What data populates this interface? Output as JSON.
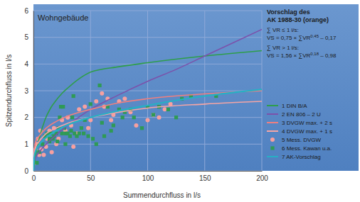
{
  "chart_data": {
    "type": "line",
    "title": "Wohngebäude",
    "x_label": "Summendurchfluss in l/s",
    "y_label": "Spitzendurchfluss in l/s",
    "xlim": [
      0,
      200
    ],
    "ylim": [
      0,
      6
    ],
    "xticks": [
      0,
      50,
      100,
      150,
      200
    ],
    "yticks": [
      0,
      1,
      2,
      3,
      4,
      5,
      6
    ],
    "grid": true,
    "legend": "right",
    "annotations": [
      "Vorschlag des",
      "AK 1988-30 (orange)",
      "∑ VR ≤ 1 l/s:",
      [
        "VS = 0,75 × ∑VR",
        "0,45",
        " – 0,17"
      ],
      "∑ VR > 1 l/s:",
      [
        "VS = 1,56 × ∑VR",
        "0,18",
        " – 0,98"
      ]
    ],
    "series": [
      {
        "name": "1 DIN B/A",
        "type": "line",
        "color": "#2e9e4a",
        "line_style": "solid",
        "x": [
          0,
          2,
          5,
          10,
          15,
          20,
          25,
          30,
          40,
          50,
          75,
          100,
          150,
          200
        ],
        "values": [
          0,
          0.6,
          1.2,
          1.9,
          2.35,
          2.65,
          2.9,
          3.1,
          3.45,
          3.7,
          3.9,
          4.05,
          4.3,
          4.5
        ]
      },
      {
        "name": "2 EN 806 – 2 U",
        "type": "line",
        "color": "#7b52ab",
        "line_style": "solid",
        "x": [
          0,
          2,
          5,
          10,
          20,
          30,
          50,
          75,
          100,
          125,
          150,
          175,
          200
        ],
        "values": [
          0.3,
          0.5,
          0.7,
          0.95,
          1.35,
          1.7,
          2.3,
          2.85,
          3.35,
          3.8,
          4.3,
          4.8,
          5.3
        ]
      },
      {
        "name": "3 DVGW max. + 2 s",
        "type": "line",
        "color": "#f07f7f",
        "line_style": "solid",
        "x": [
          0,
          2,
          5,
          10,
          20,
          30,
          50,
          75,
          100,
          150,
          200
        ],
        "values": [
          0.6,
          1.1,
          1.3,
          1.55,
          1.85,
          2.05,
          2.3,
          2.55,
          2.7,
          2.88,
          3.0
        ]
      },
      {
        "name": "4 DVGW max. + 1 s",
        "type": "line",
        "color": "#f5a5a5",
        "line_style": "solid",
        "x": [
          0,
          2,
          5,
          10,
          20,
          30,
          50,
          75,
          100,
          150,
          200
        ],
        "values": [
          0.5,
          0.9,
          1.1,
          1.35,
          1.6,
          1.78,
          2.0,
          2.2,
          2.35,
          2.5,
          2.6
        ]
      },
      {
        "name": "5 Mess. DVGW",
        "type": "scatter",
        "color": "#f7a0a0",
        "marker": "circle",
        "x": [
          1,
          2,
          3,
          4,
          5,
          6,
          7,
          9,
          11,
          12,
          14,
          16,
          18,
          20,
          22,
          25,
          28,
          30,
          33,
          35,
          38,
          40,
          45,
          48,
          50,
          55,
          60,
          62,
          65,
          68,
          70,
          75,
          80,
          85,
          90,
          100,
          105,
          110,
          115,
          120
        ],
        "values": [
          0.3,
          0.8,
          1.0,
          1.2,
          0.6,
          1.5,
          0.8,
          0.6,
          0.9,
          1.2,
          1.5,
          0.7,
          1.6,
          1.0,
          1.2,
          1.9,
          1.5,
          2.0,
          1.7,
          0.9,
          1.4,
          2.3,
          2.4,
          1.6,
          1.9,
          2.6,
          2.9,
          2.4,
          2.7,
          1.9,
          2.1,
          2.6,
          2.7,
          2.2,
          1.7,
          1.9,
          2.1,
          2.0,
          2.3,
          2.5
        ]
      },
      {
        "name": "6 Mess. Kawan u.a.",
        "type": "scatter",
        "color": "#2f9a55",
        "marker": "square",
        "x": [
          3,
          5,
          8,
          10,
          12,
          14,
          14,
          15,
          17,
          18,
          20,
          21,
          22,
          23,
          24,
          25,
          26,
          27,
          28,
          28,
          30,
          32,
          33,
          34,
          35,
          36,
          38,
          40,
          42,
          44,
          45,
          48,
          50,
          52,
          55,
          58,
          60,
          62,
          65,
          68,
          70,
          75,
          78,
          80,
          85,
          88,
          95,
          100,
          105,
          110,
          118,
          125,
          130,
          138,
          160
        ],
        "values": [
          0.3,
          0.7,
          1.0,
          1.3,
          1.4,
          1.1,
          1.2,
          1.4,
          1.2,
          1.3,
          1.4,
          1.1,
          1.6,
          2.0,
          2.4,
          1.4,
          2.4,
          1.6,
          1.0,
          1.4,
          1.4,
          1.3,
          1.5,
          2.0,
          2.8,
          1.4,
          1.3,
          1.4,
          1.6,
          1.4,
          1.9,
          1.3,
          2.5,
          1.2,
          1.0,
          3.2,
          1.8,
          1.3,
          2.4,
          1.5,
          1.7,
          2.3,
          2.0,
          2.2,
          2.3,
          2.0,
          1.6,
          2.4,
          2.1,
          2.4,
          2.3,
          2.0,
          2.7,
          2.8,
          2.8
        ]
      },
      {
        "name": "7 AK-Vorschlag",
        "type": "line",
        "color": "#27b0c4",
        "line_style": "solid",
        "x": [
          0,
          1,
          2,
          5,
          10,
          20,
          30,
          50,
          75,
          100,
          150,
          200
        ],
        "values": [
          0,
          0.58,
          0.75,
          0.98,
          1.2,
          1.5,
          1.72,
          2.0,
          2.25,
          2.45,
          2.8,
          3.05
        ]
      }
    ]
  }
}
